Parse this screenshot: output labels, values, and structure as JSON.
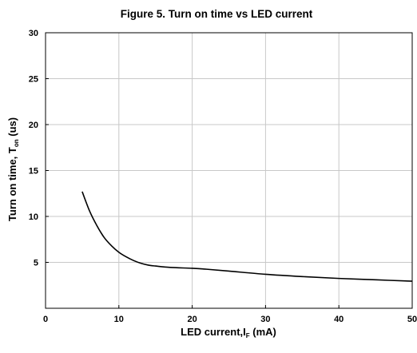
{
  "chart_data": {
    "type": "line",
    "title": "Figure 5. Turn on time vs LED current",
    "xlabel": {
      "main": "LED current,I",
      "sub": "F",
      "tail": " (mA)"
    },
    "ylabel": {
      "main": "Turn on time, T",
      "sub": "on",
      "tail": " (us)"
    },
    "xlim": [
      0,
      50
    ],
    "ylim": [
      0,
      30
    ],
    "x_ticks": [
      0,
      10,
      20,
      30,
      40,
      50
    ],
    "y_ticks": [
      5,
      10,
      15,
      20,
      25,
      30
    ],
    "x_tick_labels": [
      "0",
      "10",
      "20",
      "30",
      "40",
      "50"
    ],
    "y_tick_labels": [
      "5",
      "10",
      "15",
      "20",
      "25",
      "30"
    ],
    "grid": true,
    "series": [
      {
        "x": [
          5,
          6,
          7,
          8,
          9,
          10,
          11,
          12,
          13,
          14,
          15,
          17,
          20,
          22,
          25,
          30,
          35,
          40,
          45,
          50
        ],
        "y": [
          12.7,
          10.6,
          9.0,
          7.7,
          6.8,
          6.1,
          5.6,
          5.2,
          4.9,
          4.7,
          4.6,
          4.45,
          4.35,
          4.25,
          4.05,
          3.7,
          3.45,
          3.25,
          3.1,
          2.95
        ]
      }
    ]
  }
}
